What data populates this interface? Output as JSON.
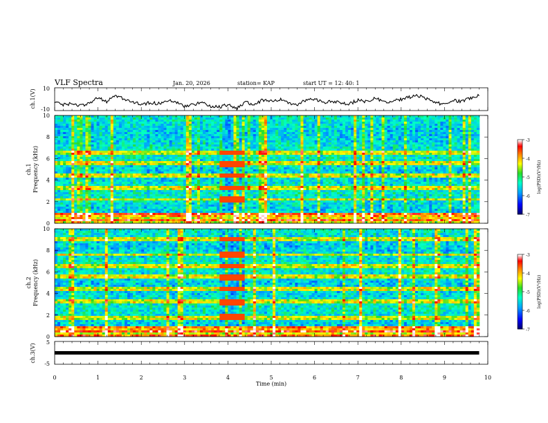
{
  "header": {
    "title": "VLF Spectra",
    "date": "Jan. 20, 2026",
    "station": "station= KAP",
    "start": "start  UT  =   12: 40: 1"
  },
  "chart_data": [
    {
      "name": "ch1-voltage",
      "type": "line",
      "ylabel": "ch.1(V)",
      "ylim": [
        -10,
        10
      ],
      "yticks": [
        "10",
        "-10"
      ],
      "xlim": [
        0,
        10
      ],
      "x": [
        0,
        0.2,
        0.4,
        0.6,
        0.8,
        1.0,
        1.2,
        1.4,
        1.6,
        1.8,
        2.0,
        2.2,
        2.4,
        2.6,
        2.8,
        3.0,
        3.2,
        3.4,
        3.6,
        3.8,
        4.0,
        4.2,
        4.4,
        4.6,
        4.8,
        5.0,
        5.2,
        5.4,
        5.6,
        5.8,
        6.0,
        6.2,
        6.4,
        6.6,
        6.8,
        7.0,
        7.2,
        7.4,
        7.6,
        7.8,
        8.0,
        8.2,
        8.4,
        8.6,
        8.8,
        9.0,
        9.2,
        9.4,
        9.6,
        9.8
      ],
      "values": [
        -2,
        -5,
        -4,
        -6,
        -3,
        1,
        -2,
        3,
        0,
        -2,
        -5,
        -3,
        -4,
        -1,
        -3,
        -6,
        -5,
        -3,
        -6,
        -7,
        -5,
        -8,
        -3,
        -4,
        -1,
        -2,
        0,
        -3,
        -5,
        -1,
        0,
        -3,
        -2,
        -3,
        -4,
        -1,
        -2,
        1,
        -3,
        -2,
        0,
        2,
        3,
        0,
        -3,
        -5,
        -1,
        -2,
        1,
        3
      ]
    },
    {
      "name": "ch1-spectrogram",
      "type": "heatmap",
      "ylabel": "ch.1\nFrequency  (kHz)",
      "ylim": [
        0,
        10
      ],
      "yticks": [
        "0",
        "2",
        "4",
        "6",
        "8",
        "10"
      ],
      "xlim": [
        0,
        10
      ],
      "colorbar": {
        "label": "log(PSD)(V²/Hz)",
        "range": [
          -7,
          -3
        ],
        "ticks": [
          "-3",
          "-4",
          "-5",
          "-6",
          "-7"
        ]
      },
      "bands_khz": [
        2.2,
        3.3,
        4.4,
        5.5,
        6.5
      ],
      "burst_minutes": [
        3.8,
        4.4
      ]
    },
    {
      "name": "ch2-spectrogram",
      "type": "heatmap",
      "ylabel": "ch.2\nFrequency  (kHz)",
      "ylim": [
        0,
        10
      ],
      "yticks": [
        "0",
        "2",
        "4",
        "6",
        "8",
        "10"
      ],
      "xlim": [
        0,
        10
      ],
      "colorbar": {
        "label": "log(PSD)(V²/Hz)",
        "range": [
          -7,
          -3
        ],
        "ticks": [
          "-3",
          "-4",
          "-5",
          "-6",
          "-7"
        ]
      },
      "bands_khz": [
        1.8,
        3.2,
        4.4,
        5.5,
        6.5,
        7.6,
        9.0
      ],
      "burst_minutes": [
        3.8,
        4.4
      ]
    },
    {
      "name": "ch3-voltage",
      "type": "line",
      "ylabel": "ch.3(V)",
      "ylim": [
        -5,
        5
      ],
      "yticks": [
        "5",
        "-5"
      ],
      "xlim": [
        0,
        10
      ],
      "x": [
        0,
        9.8
      ],
      "values": [
        0,
        0
      ]
    }
  ],
  "xaxis": {
    "label": "Time  (min)",
    "ticks": [
      "0",
      "1",
      "2",
      "3",
      "4",
      "5",
      "6",
      "7",
      "8",
      "9",
      "10"
    ]
  },
  "colors": {
    "scale": [
      "#000088",
      "#0000ff",
      "#00aaff",
      "#00ffaa",
      "#22dd22",
      "#ffff00",
      "#ff8800",
      "#ff0000",
      "#ffffff"
    ]
  }
}
